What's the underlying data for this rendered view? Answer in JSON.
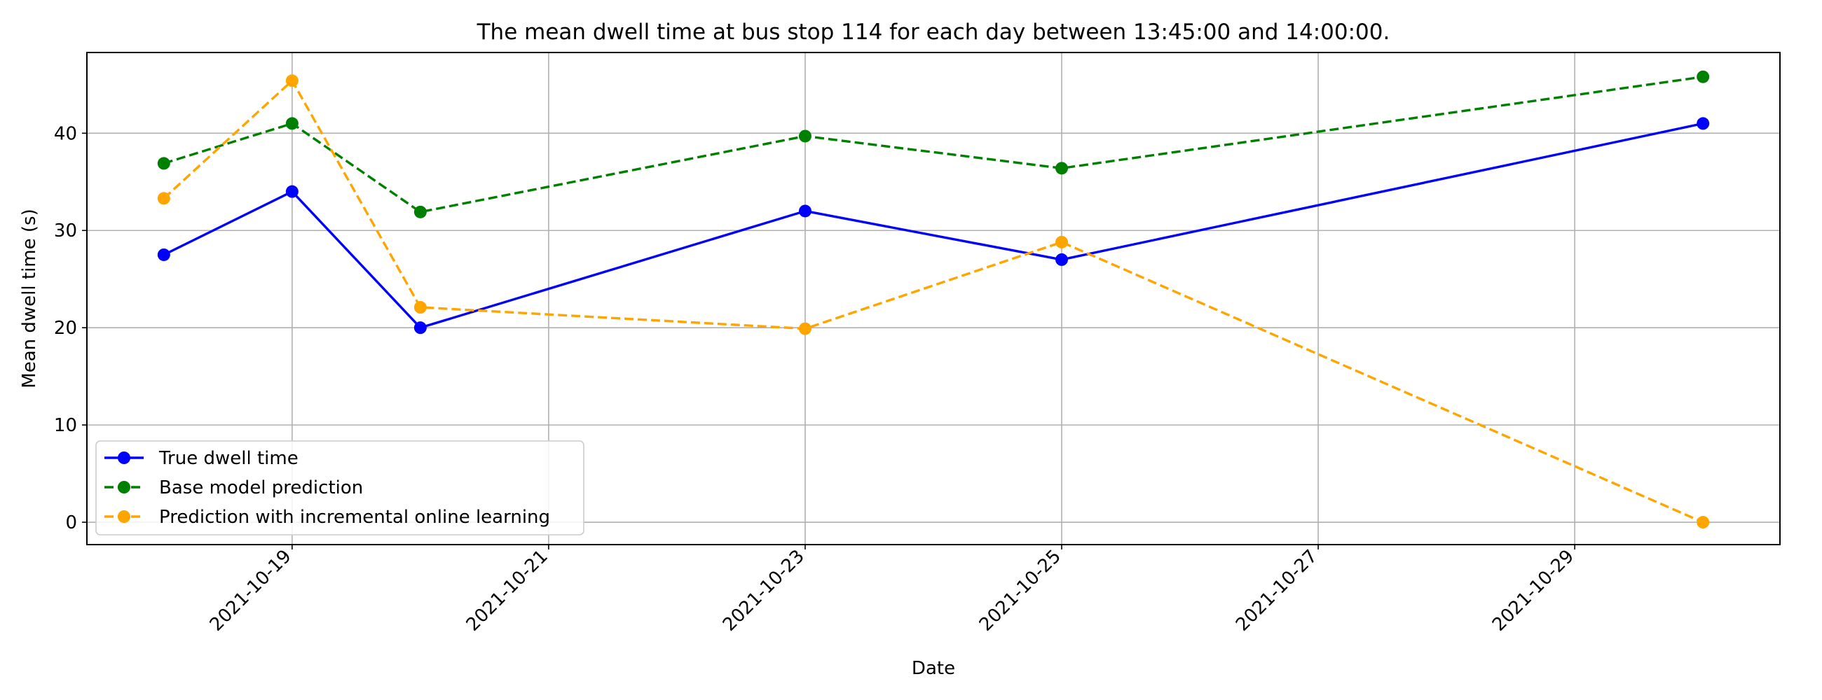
{
  "chart_data": {
    "type": "line",
    "title": "The mean dwell time at bus stop 114 for each day between 13:45:00 and 14:00:00.",
    "xlabel": "Date",
    "ylabel": "Mean dwell time (s)",
    "x_tick_labels": [
      "2021-10-19",
      "2021-10-21",
      "2021-10-23",
      "2021-10-25",
      "2021-10-27",
      "2021-10-29"
    ],
    "x_ticks": [
      "2021-10-19",
      "2021-10-21",
      "2021-10-23",
      "2021-10-25",
      "2021-10-27",
      "2021-10-29"
    ],
    "y_ticks": [
      0,
      10,
      20,
      30,
      40
    ],
    "xlim": [
      "2021-10-17 09:36",
      "2021-10-30 14:24"
    ],
    "ylim": [
      -2.3,
      48.3
    ],
    "grid": true,
    "legend_position": "lower-left",
    "x": [
      "2021-10-18",
      "2021-10-19",
      "2021-10-20",
      "2021-10-23",
      "2021-10-25",
      "2021-10-30"
    ],
    "series": [
      {
        "name": "True dwell time",
        "values": [
          27.5,
          34.0,
          20.0,
          32.0,
          27.0,
          41.0
        ],
        "color": "#0000ff",
        "style": "solid"
      },
      {
        "name": "Base model prediction",
        "values": [
          36.9,
          41.0,
          31.9,
          39.7,
          36.4,
          45.8
        ],
        "color": "#008000",
        "style": "dashed"
      },
      {
        "name": "Prediction with incremental online learning",
        "values": [
          33.3,
          45.4,
          22.1,
          19.9,
          28.8,
          0.0
        ],
        "color": "#ffa500",
        "style": "dashed"
      }
    ]
  }
}
